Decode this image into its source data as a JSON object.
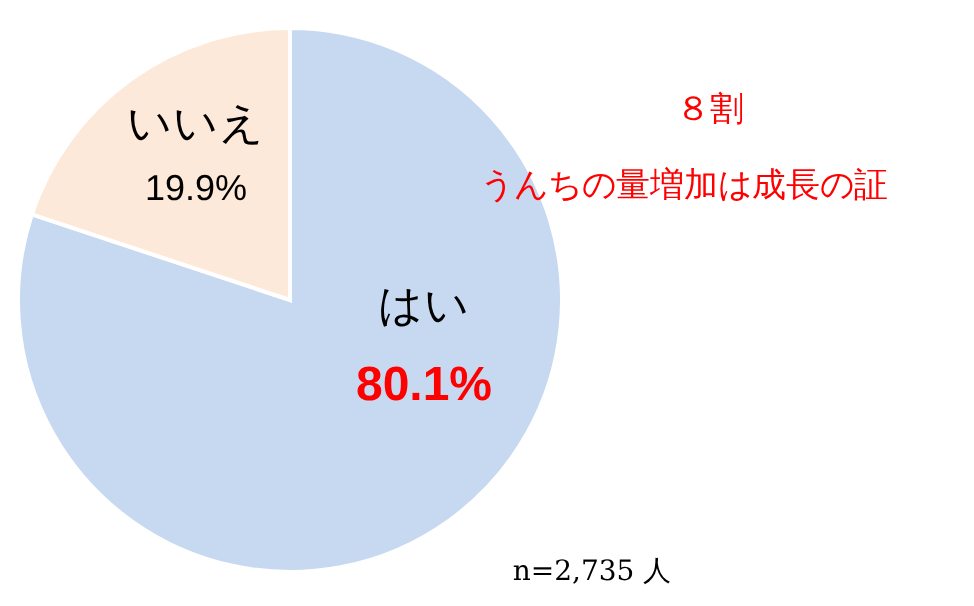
{
  "chart_data": {
    "type": "pie",
    "title": "８割",
    "subtitle": "うんちの量増加は成長の証",
    "categories": [
      "はい",
      "いいえ"
    ],
    "values": [
      80.1,
      19.9
    ],
    "value_labels": [
      "80.1%",
      "19.9%"
    ],
    "colors": [
      "#c6d9f0",
      "#fde9d9"
    ],
    "annotations": [
      "n=2,735 人"
    ],
    "legend": false
  }
}
